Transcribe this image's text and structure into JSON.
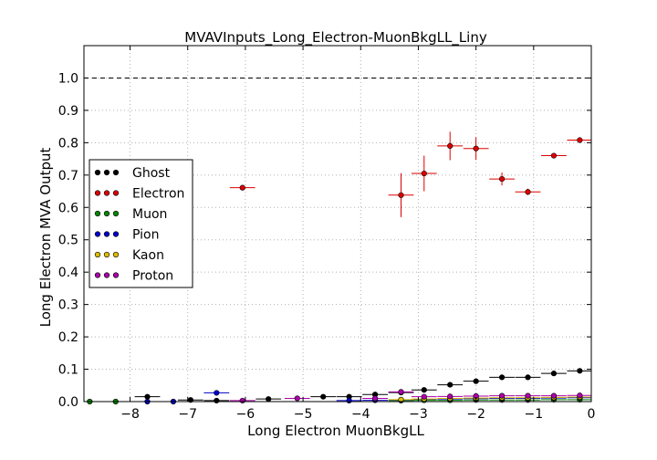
{
  "chart_data": {
    "type": "scatter",
    "title": "MVAVInputs_Long_Electron-MuonBkgLL_Liny",
    "xlabel": "Long Electron MuonBkgLL",
    "ylabel": "Long Electron MVA Output",
    "xlim": [
      -8.8,
      0
    ],
    "ylim": [
      0,
      1.1
    ],
    "xticks": [
      -8,
      -7,
      -6,
      -5,
      -4,
      -3,
      -2,
      -1,
      0
    ],
    "xtick_labels": [
      "−8",
      "−7",
      "−6",
      "−5",
      "−4",
      "−3",
      "−2",
      "−1",
      "0"
    ],
    "yticks": [
      0.0,
      0.1,
      0.2,
      0.3,
      0.4,
      0.5,
      0.6,
      0.7,
      0.8,
      0.9,
      1.0
    ],
    "ytick_labels": [
      "0.0",
      "0.1",
      "0.2",
      "0.3",
      "0.4",
      "0.5",
      "0.6",
      "0.7",
      "0.8",
      "0.9",
      "1.0"
    ],
    "grid": true,
    "reference_line": 1.0,
    "legend_position": "center-left",
    "bin_half_width": 0.22,
    "series": [
      {
        "name": "Ghost",
        "color": "#000000",
        "points": [
          {
            "x": -7.7,
            "y": 0.015,
            "yerr": 0.003
          },
          {
            "x": -6.95,
            "y": 0.005,
            "yerr": 0.002
          },
          {
            "x": -6.5,
            "y": 0.003,
            "yerr": 0.002
          },
          {
            "x": -5.6,
            "y": 0.008,
            "yerr": 0.002
          },
          {
            "x": -4.65,
            "y": 0.015,
            "yerr": 0.002
          },
          {
            "x": -4.2,
            "y": 0.015,
            "yerr": 0.002
          },
          {
            "x": -3.75,
            "y": 0.022,
            "yerr": 0.002
          },
          {
            "x": -3.3,
            "y": 0.028,
            "yerr": 0.002
          },
          {
            "x": -2.9,
            "y": 0.036,
            "yerr": 0.002
          },
          {
            "x": -2.45,
            "y": 0.052,
            "yerr": 0.002
          },
          {
            "x": -2.0,
            "y": 0.063,
            "yerr": 0.002
          },
          {
            "x": -1.55,
            "y": 0.075,
            "yerr": 0.002
          },
          {
            "x": -1.1,
            "y": 0.075,
            "yerr": 0.002
          },
          {
            "x": -0.65,
            "y": 0.087,
            "yerr": 0.002
          },
          {
            "x": -0.2,
            "y": 0.095,
            "yerr": 0.002
          }
        ]
      },
      {
        "name": "Electron",
        "color": "#dd0000",
        "points": [
          {
            "x": -6.05,
            "y": 0.661,
            "yerr": 0.004
          },
          {
            "x": -3.3,
            "y": 0.638,
            "yerr": 0.068
          },
          {
            "x": -2.9,
            "y": 0.705,
            "yerr": 0.055
          },
          {
            "x": -2.45,
            "y": 0.79,
            "yerr": 0.044
          },
          {
            "x": -2.0,
            "y": 0.782,
            "yerr": 0.035
          },
          {
            "x": -1.55,
            "y": 0.688,
            "yerr": 0.02
          },
          {
            "x": -1.1,
            "y": 0.648,
            "yerr": 0.01
          },
          {
            "x": -0.65,
            "y": 0.76,
            "yerr": 0.006
          },
          {
            "x": -0.2,
            "y": 0.808,
            "yerr": 0.005
          }
        ]
      },
      {
        "name": "Muon",
        "color": "#008800",
        "points": [
          {
            "x": -8.7,
            "y": 0.0,
            "yerr": 0.0
          },
          {
            "x": -8.25,
            "y": 0.0,
            "yerr": 0.0
          },
          {
            "x": -3.3,
            "y": 0.003,
            "yerr": 0.001
          },
          {
            "x": -2.9,
            "y": 0.004,
            "yerr": 0.001
          },
          {
            "x": -2.45,
            "y": 0.004,
            "yerr": 0.001
          },
          {
            "x": -2.0,
            "y": 0.005,
            "yerr": 0.001
          },
          {
            "x": -1.55,
            "y": 0.005,
            "yerr": 0.001
          },
          {
            "x": -1.1,
            "y": 0.005,
            "yerr": 0.001
          },
          {
            "x": -0.65,
            "y": 0.006,
            "yerr": 0.001
          },
          {
            "x": -0.2,
            "y": 0.006,
            "yerr": 0.001
          }
        ]
      },
      {
        "name": "Pion",
        "color": "#0000cc",
        "points": [
          {
            "x": -7.7,
            "y": 0.0,
            "yerr": 0.0
          },
          {
            "x": -7.25,
            "y": 0.0,
            "yerr": 0.0
          },
          {
            "x": -6.5,
            "y": 0.027,
            "yerr": 0.004
          },
          {
            "x": -4.2,
            "y": 0.003,
            "yerr": 0.001
          },
          {
            "x": -3.75,
            "y": 0.004,
            "yerr": 0.001
          },
          {
            "x": -3.3,
            "y": 0.005,
            "yerr": 0.001
          },
          {
            "x": -2.9,
            "y": 0.007,
            "yerr": 0.001
          },
          {
            "x": -2.45,
            "y": 0.008,
            "yerr": 0.001
          },
          {
            "x": -2.0,
            "y": 0.009,
            "yerr": 0.001
          },
          {
            "x": -1.55,
            "y": 0.01,
            "yerr": 0.001
          },
          {
            "x": -1.1,
            "y": 0.01,
            "yerr": 0.001
          },
          {
            "x": -0.65,
            "y": 0.011,
            "yerr": 0.001
          },
          {
            "x": -0.2,
            "y": 0.012,
            "yerr": 0.001
          }
        ]
      },
      {
        "name": "Kaon",
        "color": "#ddbb00",
        "points": [
          {
            "x": -3.3,
            "y": 0.006,
            "yerr": 0.001
          },
          {
            "x": -2.9,
            "y": 0.008,
            "yerr": 0.001
          },
          {
            "x": -2.45,
            "y": 0.01,
            "yerr": 0.001
          },
          {
            "x": -2.0,
            "y": 0.011,
            "yerr": 0.001
          },
          {
            "x": -1.55,
            "y": 0.012,
            "yerr": 0.001
          },
          {
            "x": -1.1,
            "y": 0.012,
            "yerr": 0.001
          },
          {
            "x": -0.65,
            "y": 0.013,
            "yerr": 0.001
          },
          {
            "x": -0.2,
            "y": 0.014,
            "yerr": 0.001
          }
        ]
      },
      {
        "name": "Proton",
        "color": "#aa00aa",
        "points": [
          {
            "x": -6.05,
            "y": 0.003,
            "yerr": 0.001
          },
          {
            "x": -5.1,
            "y": 0.01,
            "yerr": 0.002
          },
          {
            "x": -3.75,
            "y": 0.01,
            "yerr": 0.002
          },
          {
            "x": -3.3,
            "y": 0.03,
            "yerr": 0.003
          },
          {
            "x": -2.9,
            "y": 0.015,
            "yerr": 0.002
          },
          {
            "x": -2.45,
            "y": 0.016,
            "yerr": 0.002
          },
          {
            "x": -2.0,
            "y": 0.017,
            "yerr": 0.002
          },
          {
            "x": -1.55,
            "y": 0.018,
            "yerr": 0.002
          },
          {
            "x": -1.1,
            "y": 0.018,
            "yerr": 0.002
          },
          {
            "x": -0.65,
            "y": 0.018,
            "yerr": 0.002
          },
          {
            "x": -0.2,
            "y": 0.019,
            "yerr": 0.002
          }
        ]
      }
    ]
  }
}
